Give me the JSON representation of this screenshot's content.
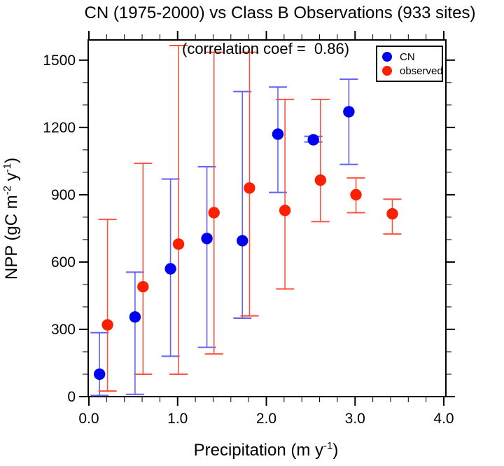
{
  "page": {
    "background": "#ffffff"
  },
  "chart_data": {
    "type": "scatter",
    "title": "CN (1975-2000) vs Class B Observations (933 sites)",
    "annotation": "(correlation coef =  0.86)",
    "xlabel_parts": {
      "pre": "Precipitation (m y",
      "sup": "-1",
      "post": ")"
    },
    "ylabel_parts": {
      "pre": "NPP (gC m",
      "sup1": "-2",
      "mid": " y",
      "sup2": "-1",
      "post": ")"
    },
    "x_axis": {
      "min": 0,
      "max": 4,
      "major_ticks": [
        0,
        1,
        2,
        3,
        4
      ],
      "tick_labels": [
        "0.0",
        "1.0",
        "2.0",
        "3.0",
        "4.0"
      ],
      "minor_step": 0.2
    },
    "y_axis": {
      "min": 0,
      "max": 1590,
      "major_ticks": [
        0,
        300,
        600,
        900,
        1200,
        1500
      ],
      "tick_labels": [
        "0",
        "300",
        "600",
        "900",
        "1200",
        "1500"
      ],
      "minor_step": 100
    },
    "grid": false,
    "legend": {
      "position": "top-right",
      "items": [
        {
          "label": "CN",
          "color": "#0000f0"
        },
        {
          "label": "observed",
          "color": "#fb2000"
        }
      ]
    },
    "series": [
      {
        "name": "CN",
        "marker_color": "#0000f0",
        "bar_color": "#6262f5",
        "points": [
          {
            "x": 0.12,
            "y": 100,
            "lo": 5,
            "hi": 285
          },
          {
            "x": 0.52,
            "y": 355,
            "lo": 10,
            "hi": 555
          },
          {
            "x": 0.92,
            "y": 570,
            "lo": 180,
            "hi": 970
          },
          {
            "x": 1.33,
            "y": 705,
            "lo": 220,
            "hi": 1025
          },
          {
            "x": 1.73,
            "y": 695,
            "lo": 350,
            "hi": 1360
          },
          {
            "x": 2.13,
            "y": 1170,
            "lo": 910,
            "hi": 1380
          },
          {
            "x": 2.53,
            "y": 1145,
            "lo": 1135,
            "hi": 1160
          },
          {
            "x": 2.93,
            "y": 1270,
            "lo": 1035,
            "hi": 1415
          }
        ]
      },
      {
        "name": "observed",
        "marker_color": "#fb2000",
        "bar_color": "#fb5440",
        "points": [
          {
            "x": 0.21,
            "y": 320,
            "lo": 25,
            "hi": 790
          },
          {
            "x": 0.61,
            "y": 490,
            "lo": 100,
            "hi": 1040
          },
          {
            "x": 1.01,
            "y": 680,
            "lo": 100,
            "hi": 1565
          },
          {
            "x": 1.41,
            "y": 820,
            "lo": 190,
            "hi": 1535
          },
          {
            "x": 1.81,
            "y": 930,
            "lo": 360,
            "hi": 1535
          },
          {
            "x": 2.21,
            "y": 830,
            "lo": 480,
            "hi": 1325
          },
          {
            "x": 2.61,
            "y": 965,
            "lo": 780,
            "hi": 1325
          },
          {
            "x": 3.01,
            "y": 900,
            "lo": 820,
            "hi": 975
          },
          {
            "x": 3.42,
            "y": 815,
            "lo": 725,
            "hi": 880
          }
        ]
      }
    ]
  }
}
